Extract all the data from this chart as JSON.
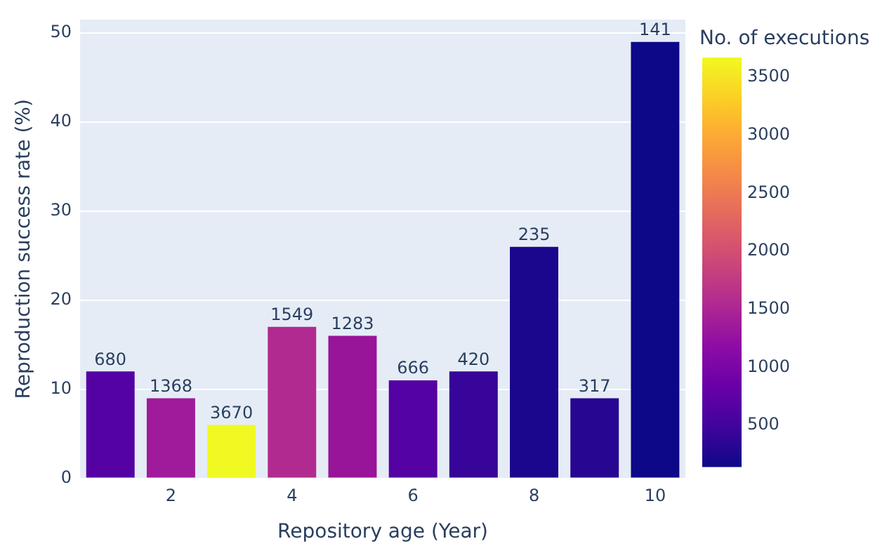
{
  "chart_data": {
    "type": "bar",
    "xlabel": "Repository age (Year)",
    "ylabel": "Reproduction success rate (%)",
    "clabel": "No. of executions",
    "x": [
      1,
      2,
      3,
      4,
      5,
      6,
      7,
      8,
      9,
      10
    ],
    "values": [
      12,
      9,
      6,
      17,
      16,
      11,
      12,
      26,
      9,
      49
    ],
    "colors": [
      "#5502a4",
      "#a01a9c",
      "#f0f921",
      "#b12a90",
      "#981499",
      "#5402a3",
      "#370599",
      "#1a078d",
      "#270692",
      "#0d0887"
    ],
    "annotations": [
      {
        "text": "680",
        "x": 1,
        "y": 12
      },
      {
        "text": "1368",
        "x": 2,
        "y": 9
      },
      {
        "text": "3670",
        "x": 3,
        "y": 6
      },
      {
        "text": "1549",
        "x": 4,
        "y": 17
      },
      {
        "text": "1283",
        "x": 5,
        "y": 16
      },
      {
        "text": "666",
        "x": 6,
        "y": 11
      },
      {
        "text": "420",
        "x": 7,
        "y": 12
      },
      {
        "text": "235",
        "x": 8,
        "y": 26
      },
      {
        "text": "317",
        "x": 9,
        "y": 9
      },
      {
        "text": "141",
        "x": 10,
        "y": 49
      }
    ],
    "xlim": [
      0.5,
      10.5
    ],
    "xticks": [
      2,
      4,
      6,
      8,
      10
    ],
    "ylim": [
      0,
      51.5
    ],
    "yticks": [
      0,
      10,
      20,
      30,
      40,
      50
    ],
    "clim": [
      141,
      3670
    ],
    "cticks": [
      500,
      1000,
      1500,
      2000,
      2500,
      3000,
      3500
    ],
    "grid": "y",
    "legend": false
  }
}
